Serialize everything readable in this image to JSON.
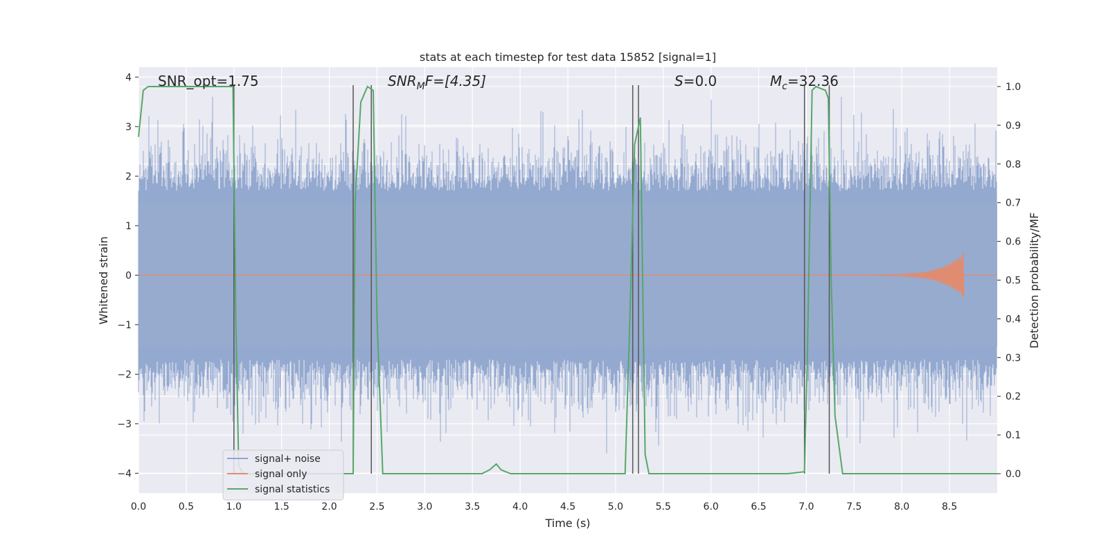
{
  "chart_data": {
    "type": "line",
    "title": "stats at each timestep for test data 15852 [signal=1]",
    "xlabel": "Time (s)",
    "ylabel": "Whitened strain",
    "y2label": "Detection probability/MF",
    "xlim": [
      0.0,
      9.0
    ],
    "ylim": [
      -4.4,
      4.2
    ],
    "y2lim": [
      -0.05,
      1.05
    ],
    "xticks": [
      0.0,
      0.5,
      1.0,
      1.5,
      2.0,
      2.5,
      3.0,
      3.5,
      4.0,
      4.5,
      5.0,
      5.5,
      6.0,
      6.5,
      7.0,
      7.5,
      8.0,
      8.5
    ],
    "xtick_labels": [
      "0.0",
      "0.5",
      "1.0",
      "1.5",
      "2.0",
      "2.5",
      "3.0",
      "3.5",
      "4.0",
      "4.5",
      "5.0",
      "5.5",
      "6.0",
      "6.5",
      "7.0",
      "7.5",
      "8.0",
      "8.5"
    ],
    "yticks": [
      -4,
      -3,
      -2,
      -1,
      0,
      1,
      2,
      3,
      4
    ],
    "ytick_labels": [
      "−4",
      "−3",
      "−2",
      "−1",
      "0",
      "1",
      "2",
      "3",
      "4"
    ],
    "y2ticks": [
      0.0,
      0.1,
      0.2,
      0.3,
      0.4,
      0.5,
      0.6,
      0.7,
      0.8,
      0.9,
      1.0
    ],
    "y2tick_labels": [
      "0.0",
      "0.1",
      "0.2",
      "0.3",
      "0.4",
      "0.5",
      "0.6",
      "0.7",
      "0.8",
      "0.9",
      "1.0"
    ],
    "grid": true,
    "legend_position": "lower-left",
    "annotations": {
      "snr_opt": "SNR_opt=1.75",
      "snr_mf_base": "SNR",
      "snr_mf_sub": "M",
      "snr_mf_rest": "F=[4.35]",
      "s_var": "S",
      "s_rest": "=0.0",
      "mc_var": "M",
      "mc_sub": "c",
      "mc_rest": "=32.36"
    },
    "noise_envelope": {
      "x": [
        0.0,
        9.0
      ],
      "typical_amplitude": 2.0,
      "max_amplitude": 3.6
    },
    "signal_chirp": {
      "x": [
        7.2,
        8.65
      ],
      "peak_time": 8.65,
      "peak_amplitude": 0.45
    },
    "vertical_lines_x": [
      1.0,
      2.25,
      2.44,
      5.18,
      5.24,
      6.98,
      7.24
    ],
    "series": [
      {
        "name": "signal+ noise",
        "color": "#8fa5ce",
        "axis": "left",
        "values_description": "whitened noisy strain"
      },
      {
        "name": "signal only",
        "color": "#e08c70",
        "axis": "left",
        "values_description": "injected chirp"
      },
      {
        "name": "signal statistics",
        "color": "#55a868",
        "axis": "right",
        "x": [
          0.0,
          0.05,
          0.1,
          0.2,
          0.3,
          0.5,
          0.7,
          0.9,
          0.99,
          1.02,
          1.05,
          1.1,
          1.2,
          1.4,
          1.6,
          1.8,
          2.0,
          2.1,
          2.2,
          2.25,
          2.27,
          2.33,
          2.4,
          2.46,
          2.5,
          2.56,
          2.7,
          3.0,
          3.3,
          3.6,
          3.68,
          3.75,
          3.8,
          3.9,
          4.1,
          4.4,
          4.7,
          5.0,
          5.1,
          5.15,
          5.2,
          5.26,
          5.31,
          5.35,
          5.5,
          6.0,
          6.5,
          6.8,
          6.98,
          7.01,
          7.06,
          7.1,
          7.2,
          7.23,
          7.26,
          7.3,
          7.38,
          7.5,
          8.0,
          8.5,
          9.0
        ],
        "values": [
          0.87,
          0.99,
          1.0,
          1.0,
          1.0,
          1.0,
          1.0,
          1.0,
          1.0,
          0.4,
          0.02,
          0.0,
          0.0,
          0.0,
          0.0,
          0.0,
          0.0,
          0.0,
          0.0,
          0.0,
          0.7,
          0.96,
          1.0,
          0.99,
          0.4,
          0.0,
          0.0,
          0.0,
          0.0,
          0.0,
          0.01,
          0.025,
          0.01,
          0.0,
          0.0,
          0.0,
          0.0,
          0.0,
          0.0,
          0.4,
          0.85,
          0.92,
          0.05,
          0.0,
          0.0,
          0.0,
          0.0,
          0.0,
          0.005,
          0.3,
          0.99,
          1.0,
          0.99,
          0.97,
          0.5,
          0.15,
          0.0,
          0.0,
          0.0,
          0.0,
          0.0
        ]
      }
    ]
  }
}
